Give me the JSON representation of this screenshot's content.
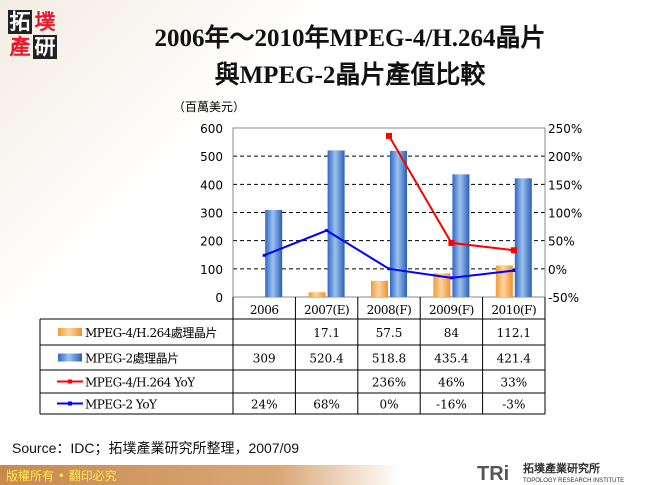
{
  "title_line1": "2006年～2010年MPEG-4/H.264晶片",
  "title_line2": "與MPEG-2晶片產值比較",
  "logo_text": "拓墣產研",
  "chart_data": {
    "type": "bar+line",
    "ylabel": "（百萬美元）",
    "categories": [
      "2006",
      "2007(E)",
      "2008(F)",
      "2009(F)",
      "2010(F)"
    ],
    "ylim": [
      0,
      600
    ],
    "yticks": [
      "0",
      "100",
      "200",
      "300",
      "400",
      "500",
      "600"
    ],
    "y2lim": [
      -50,
      250
    ],
    "y2ticks": [
      "-50%",
      "0%",
      "50%",
      "100%",
      "150%",
      "200%",
      "250%"
    ],
    "grid": "dashed horizontal",
    "legend": "table below chart",
    "series": [
      {
        "name": "MPEG-4/H.264處理晶片",
        "type": "bar",
        "axis": "left",
        "color": "#f5a64a",
        "values": [
          null,
          17.1,
          57.5,
          84,
          112.1
        ],
        "labels": [
          "",
          "17.1",
          "57.5",
          "84",
          "112.1"
        ]
      },
      {
        "name": "MPEG-2處理晶片",
        "type": "bar",
        "axis": "left",
        "color": "#3d78d0",
        "values": [
          309,
          520.4,
          518.8,
          435.4,
          421.4
        ],
        "labels": [
          "309",
          "520.4",
          "518.8",
          "435.4",
          "421.4"
        ]
      },
      {
        "name": "MPEG-4/H.264 YoY",
        "type": "line",
        "axis": "right",
        "color": "#ff0000",
        "values": [
          null,
          null,
          236,
          46,
          33
        ],
        "labels": [
          "",
          "",
          "236%",
          "46%",
          "33%"
        ]
      },
      {
        "name": "MPEG-2 YoY",
        "type": "line",
        "axis": "right",
        "color": "#0000ff",
        "values": [
          24,
          68,
          0,
          -16,
          -3
        ],
        "labels": [
          "24%",
          "68%",
          "0%",
          "-16%",
          "-3%"
        ]
      }
    ]
  },
  "source": "Source：IDC；拓墣產業研究所整理，2007/09",
  "footer": "版權所有 • 翻印必究",
  "tri_logo": {
    "mark": "TRi",
    "name": "拓墣產業研究所",
    "sub": "TOPOLOGY RESEARCH INSTITUTE"
  }
}
